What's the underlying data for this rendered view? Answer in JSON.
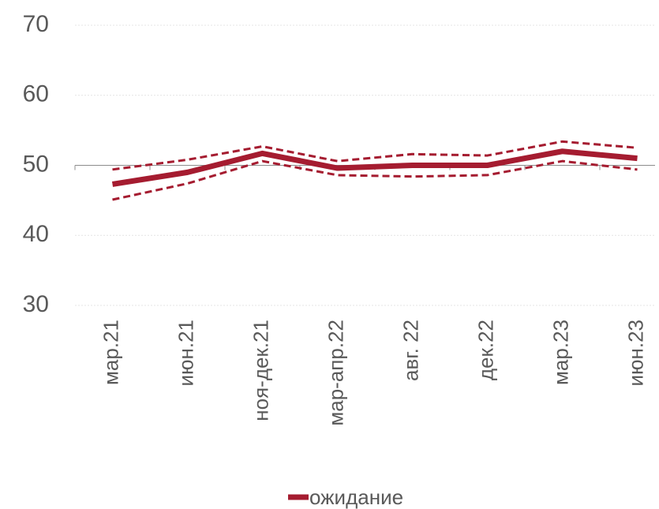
{
  "chart_data": {
    "type": "line",
    "categories": [
      "мар.21",
      "июн.21",
      "ноя-дек.21",
      "мар-апр.22",
      "авг. 22",
      "дек.22",
      "мар.23",
      "июн.23"
    ],
    "series": [
      {
        "name": "ожидание",
        "color": "#a51c30",
        "style": "solid",
        "values": [
          47.3,
          49,
          51.7,
          49.6,
          50,
          50,
          52,
          51
        ]
      },
      {
        "color": "#a51c30",
        "style": "dashed",
        "values": [
          49.4,
          50.8,
          52.7,
          50.6,
          51.6,
          51.4,
          53.4,
          52.5
        ]
      },
      {
        "color": "#a51c30",
        "style": "dashed",
        "values": [
          45.1,
          47.4,
          50.6,
          48.6,
          48.4,
          48.6,
          50.6,
          49.4
        ]
      }
    ],
    "ylim": [
      30,
      70
    ],
    "yticks": [
      30,
      40,
      50,
      60,
      70
    ],
    "grid": true,
    "x_axis_at": 50,
    "legend": "bottom"
  }
}
